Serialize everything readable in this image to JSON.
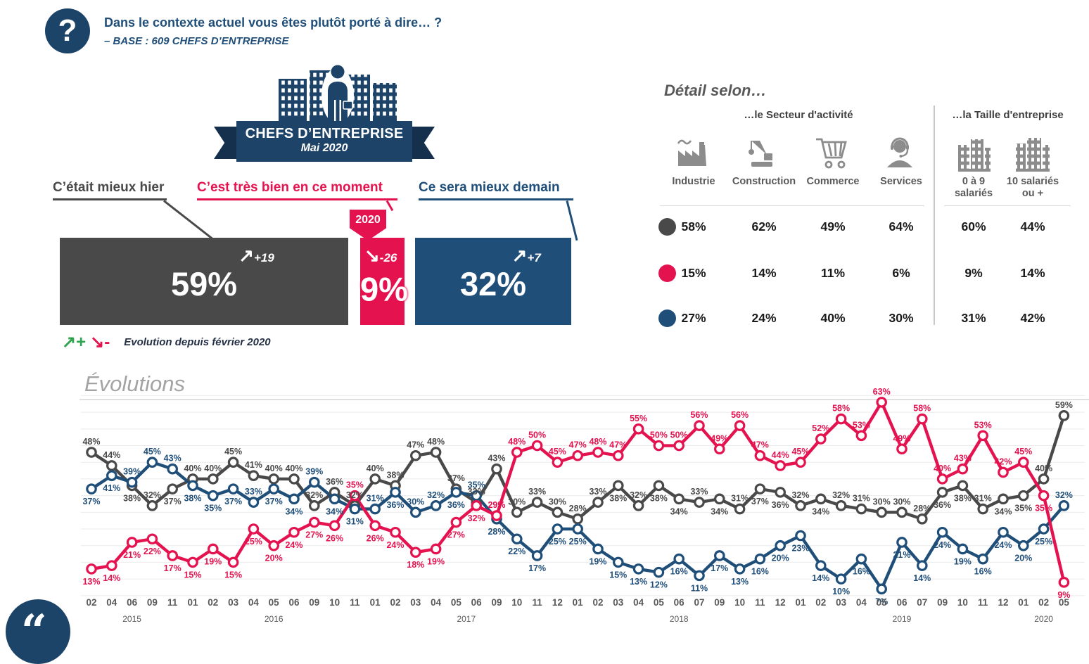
{
  "header": {
    "question": "Dans le contexte actuel vous êtes plutôt porté à dire… ?",
    "base": "– BASE : 609 CHEFS D’ENTREPRISE"
  },
  "badge": {
    "title": "CHEFS D’ENTREPRISE",
    "subtitle": "Mai 2020"
  },
  "bars": {
    "items": [
      {
        "label": "C’était mieux hier",
        "value": 59,
        "display": "59%",
        "direction": "up",
        "evolution": "+19",
        "color": "#494949"
      },
      {
        "label": "C’est très bien en ce moment",
        "value": 9,
        "display": "9%",
        "direction": "down",
        "evolution": "-26",
        "color": "#E4134F",
        "tag": "2020"
      },
      {
        "label": "Ce sera mieux demain",
        "value": 32,
        "display": "32%",
        "direction": "up",
        "evolution": "+7",
        "color": "#1F4E79"
      }
    ],
    "legend_text": "Evolution depuis février 2020",
    "legend_up_symbol": "↗+",
    "legend_down_symbol": "↘-",
    "up_color": "#2FA44E",
    "down_color": "#E4134F"
  },
  "detail": {
    "title": "Détail selon…",
    "sector_header": "…le Secteur d'activité",
    "size_header": "…la Taille d'entreprise",
    "columns": [
      {
        "icon": "factory-icon",
        "lines": [
          "Industrie"
        ]
      },
      {
        "icon": "crane-icon",
        "lines": [
          "Construction"
        ]
      },
      {
        "icon": "cart-icon",
        "lines": [
          "Commerce"
        ]
      },
      {
        "icon": "headset-icon",
        "lines": [
          "Services"
        ]
      },
      {
        "icon": "small-buildings-icon",
        "lines": [
          "0 à 9",
          "salariés"
        ]
      },
      {
        "icon": "large-buildings-icon",
        "lines": [
          "10 salariés",
          "ou +"
        ]
      }
    ],
    "rows": [
      {
        "series": "C’était mieux hier",
        "color": "#494949",
        "values": [
          "58%",
          "62%",
          "49%",
          "64%",
          "60%",
          "44%"
        ]
      },
      {
        "series": "C’est très bien en ce moment",
        "color": "#E4134F",
        "values": [
          "15%",
          "14%",
          "11%",
          "6%",
          "9%",
          "14%"
        ]
      },
      {
        "series": "Ce sera mieux demain",
        "color": "#1F4E79",
        "values": [
          "27%",
          "24%",
          "40%",
          "30%",
          "31%",
          "42%"
        ]
      }
    ]
  },
  "chart_data": {
    "type": "line",
    "title": "Évolutions",
    "grid": true,
    "ylim": [
      0,
      65
    ],
    "point_labels": "percent shown at every point",
    "x_months": [
      "02",
      "04",
      "06",
      "09",
      "11",
      "01",
      "02",
      "03",
      "04",
      "05",
      "06",
      "09",
      "10",
      "11",
      "01",
      "02",
      "03",
      "04",
      "05",
      "06",
      "09",
      "10",
      "11",
      "12",
      "01",
      "02",
      "03",
      "04",
      "05",
      "06",
      "07",
      "09",
      "10",
      "11",
      "12",
      "01",
      "02",
      "03",
      "04",
      "05",
      "06",
      "07",
      "09",
      "10",
      "11",
      "12",
      "01",
      "02",
      "05"
    ],
    "year_groups": [
      {
        "label": "2015",
        "from": 0,
        "to": 4
      },
      {
        "label": "2016",
        "from": 5,
        "to": 13
      },
      {
        "label": "2017",
        "from": 14,
        "to": 23
      },
      {
        "label": "2018",
        "from": 24,
        "to": 34
      },
      {
        "label": "2019",
        "from": 35,
        "to": 45
      },
      {
        "label": "2020",
        "from": 46,
        "to": 48
      }
    ],
    "series": [
      {
        "name": "C’était mieux hier",
        "color": "#494949",
        "values": [
          48,
          44,
          38,
          32,
          37,
          40,
          40,
          45,
          41,
          40,
          40,
          32,
          36,
          32,
          40,
          38,
          47,
          48,
          37,
          33,
          43,
          30,
          33,
          30,
          28,
          33,
          38,
          32,
          38,
          34,
          33,
          34,
          31,
          37,
          36,
          32,
          34,
          32,
          31,
          30,
          30,
          28,
          36,
          38,
          31,
          34,
          35,
          40,
          59
        ]
      },
      {
        "name": "Ce sera mieux demain",
        "color": "#1F4E79",
        "values": [
          37,
          41,
          39,
          45,
          43,
          38,
          35,
          37,
          33,
          37,
          34,
          39,
          34,
          31,
          31,
          36,
          30,
          32,
          36,
          35,
          28,
          22,
          17,
          25,
          25,
          19,
          15,
          13,
          12,
          16,
          11,
          17,
          13,
          16,
          20,
          23,
          14,
          10,
          16,
          7,
          21,
          14,
          24,
          19,
          16,
          24,
          20,
          25,
          32
        ]
      },
      {
        "name": "C’est très bien en ce moment",
        "color": "#E4134F",
        "values": [
          13,
          14,
          21,
          22,
          17,
          15,
          19,
          15,
          25,
          20,
          24,
          27,
          26,
          35,
          26,
          24,
          18,
          19,
          27,
          32,
          29,
          48,
          50,
          45,
          47,
          48,
          47,
          55,
          50,
          50,
          56,
          49,
          56,
          47,
          44,
          45,
          52,
          58,
          53,
          63,
          49,
          58,
          40,
          43,
          53,
          42,
          45,
          35,
          9
        ]
      }
    ]
  },
  "quote_glyph": "“"
}
